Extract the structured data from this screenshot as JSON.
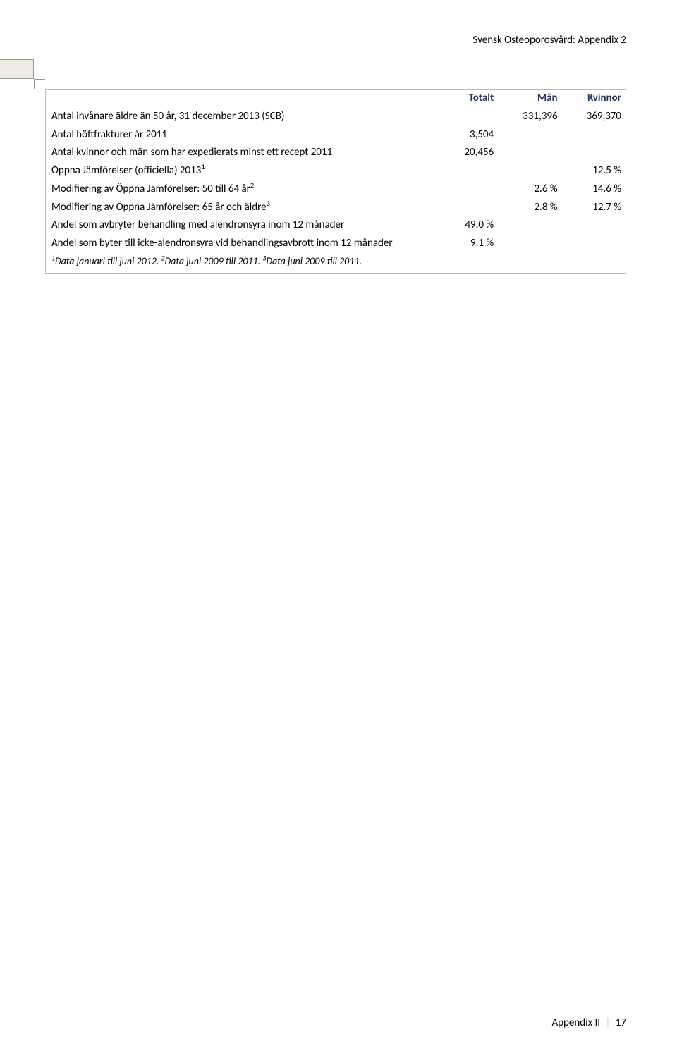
{
  "header": {
    "title": "Svensk Osteoporosvård: Appendix 2"
  },
  "table": {
    "columns": {
      "label": "",
      "totalt": "Totalt",
      "man": "Män",
      "kvinnor": "Kvinnor"
    },
    "rows": [
      {
        "label_pre": "Antal invånare äldre än 50 år, 31 december 2013 (SCB)",
        "sup": "",
        "label_post": "",
        "totalt": "",
        "man": "331,396",
        "kvinnor": "369,370"
      },
      {
        "label_pre": "Antal höftfrakturer år 2011",
        "sup": "",
        "label_post": "",
        "totalt": "3,504",
        "man": "",
        "kvinnor": ""
      },
      {
        "label_pre": "Antal kvinnor och män som har expedierats minst ett recept 2011",
        "sup": "",
        "label_post": "",
        "totalt": "20,456",
        "man": "",
        "kvinnor": ""
      },
      {
        "label_pre": "Öppna Jämförelser (officiella) 2013",
        "sup": "1",
        "label_post": "",
        "totalt": "",
        "man": "",
        "kvinnor": "12.5 %"
      },
      {
        "label_pre": "Modifiering av Öppna Jämförelser: 50 till 64 år",
        "sup": "2",
        "label_post": "",
        "totalt": "",
        "man": "2.6 %",
        "kvinnor": "14.6 %"
      },
      {
        "label_pre": "Modifiering av Öppna Jämförelser: 65 år och äldre",
        "sup": "3",
        "label_post": "",
        "totalt": "",
        "man": "2.8 %",
        "kvinnor": "12.7 %"
      },
      {
        "label_pre": "Andel som avbryter behandling med alendronsyra inom 12 månader",
        "sup": "",
        "label_post": "",
        "totalt": "49.0 %",
        "man": "",
        "kvinnor": ""
      },
      {
        "label_pre": "Andel som byter till icke-alendronsyra vid behandlingsavbrott inom 12 månader",
        "sup": "",
        "label_post": "",
        "totalt": "9.1 %",
        "man": "",
        "kvinnor": ""
      }
    ],
    "footnote": {
      "s1": "1",
      "t1": "Data januari till juni 2012. ",
      "s2": "2",
      "t2": "Data juni 2009 till 2011. ",
      "s3": "3",
      "t3": "Data juni 2009 till 2011."
    }
  },
  "footer": {
    "label": "Appendix II",
    "sep": "|",
    "page": "17"
  }
}
